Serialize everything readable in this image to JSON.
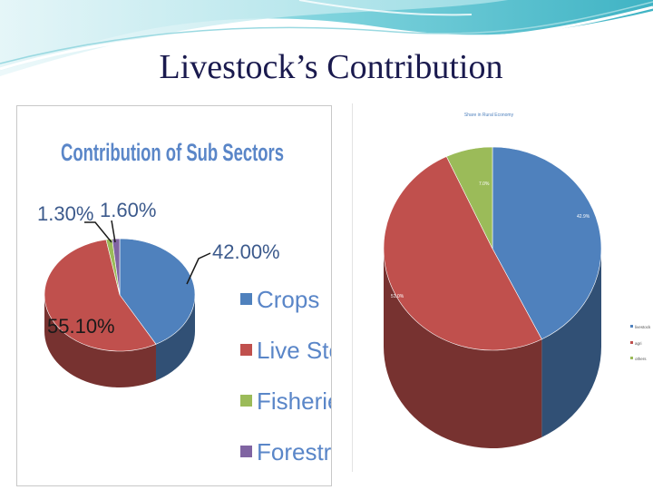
{
  "slide": {
    "title": "Livestock’s Contribution",
    "accent": "#5bc2cf"
  },
  "chart_data": [
    {
      "type": "pie",
      "title": "Contribution of Sub Sectors",
      "categories": [
        "Crops",
        "Live Stock",
        "Fisheries",
        "Forestry"
      ],
      "values": [
        42.0,
        55.1,
        1.3,
        1.6
      ],
      "labels": [
        "42.00%",
        "55.10%",
        "1.30%",
        "1.60%"
      ],
      "colors": [
        "#4f81bd",
        "#c0504d",
        "#9bbb59",
        "#8064a2"
      ],
      "legend": "right"
    },
    {
      "type": "pie",
      "title": "Share in Rural Economy",
      "categories": [
        "livestock",
        "agri",
        "others"
      ],
      "values": [
        42.9,
        51.0,
        7.0
      ],
      "labels": [
        "42.9%",
        "51.0%",
        "7.0%"
      ],
      "colors": [
        "#4f81bd",
        "#c0504d",
        "#9bbb59"
      ],
      "legend": "right"
    }
  ]
}
